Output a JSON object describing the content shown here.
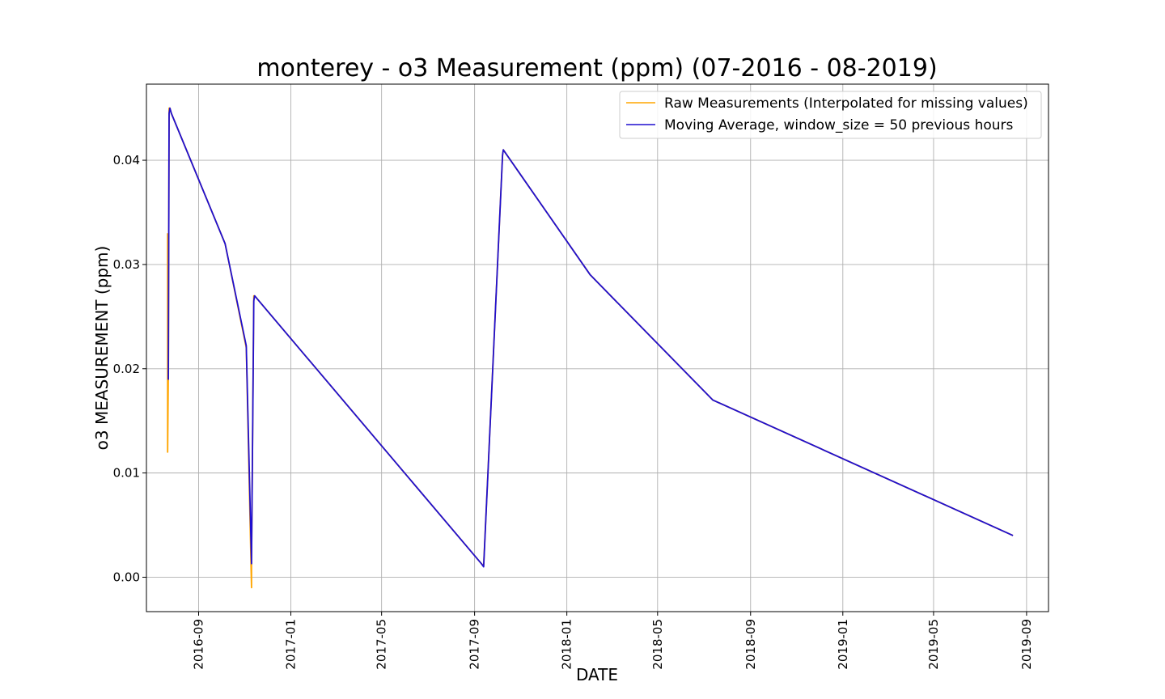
{
  "chart_data": {
    "type": "line",
    "title": "monterey - o3 Measurement (ppm) (07-2016 - 08-2019)",
    "xlabel": "DATE",
    "ylabel": "o3 MEASUREMENT (ppm)",
    "x_axis_type": "date",
    "xlim": [
      "2016-06-24",
      "2019-09-30"
    ],
    "ylim": [
      -0.0033,
      0.0473
    ],
    "x_ticks": [
      "2016-09",
      "2017-01",
      "2017-05",
      "2017-09",
      "2018-01",
      "2018-05",
      "2018-09",
      "2019-01",
      "2019-05",
      "2019-09"
    ],
    "y_ticks": [
      0.0,
      0.01,
      0.02,
      0.03,
      0.04
    ],
    "y_tick_labels": [
      "0.00",
      "0.01",
      "0.02",
      "0.03",
      "0.04"
    ],
    "grid": true,
    "legend_position": "top-right",
    "series": [
      {
        "name": "Raw Measurements (Interpolated for missing values)",
        "color": "#ffa500",
        "x": [
          "2016-07-22",
          "2016-07-22",
          "2016-07-23",
          "2016-07-23",
          "2016-07-24",
          "2016-07-25",
          "2016-07-27",
          "2016-10-06",
          "2016-11-03",
          "2016-11-10",
          "2016-11-10",
          "2016-11-13",
          "2016-11-14",
          "2017-09-10",
          "2017-09-13",
          "2017-10-08",
          "2017-10-09",
          "2018-02-01",
          "2018-07-13",
          "2019-08-14"
        ],
        "y": [
          0.033,
          0.012,
          0.02,
          0.019,
          0.045,
          0.045,
          0.0445,
          0.032,
          0.022,
          -0.001,
          0.0015,
          0.027,
          0.027,
          0.0013,
          0.0011,
          0.0405,
          0.041,
          0.029,
          0.017,
          0.004
        ]
      },
      {
        "name": "Moving Average, window_size = 50 previous hours",
        "color": "#1f0fcf",
        "x": [
          "2016-07-23",
          "2016-07-23",
          "2016-07-24",
          "2016-07-25",
          "2016-07-27",
          "2016-10-06",
          "2016-11-03",
          "2016-11-10",
          "2016-11-10",
          "2016-11-13",
          "2016-11-14",
          "2017-09-10",
          "2017-09-13",
          "2017-10-08",
          "2017-10-09",
          "2018-02-01",
          "2018-07-13",
          "2019-08-14"
        ],
        "y": [
          0.0195,
          0.019,
          0.0445,
          0.045,
          0.0445,
          0.032,
          0.0222,
          0.0013,
          0.0015,
          0.0265,
          0.027,
          0.0013,
          0.001,
          0.0405,
          0.041,
          0.029,
          0.017,
          0.004
        ]
      }
    ]
  }
}
